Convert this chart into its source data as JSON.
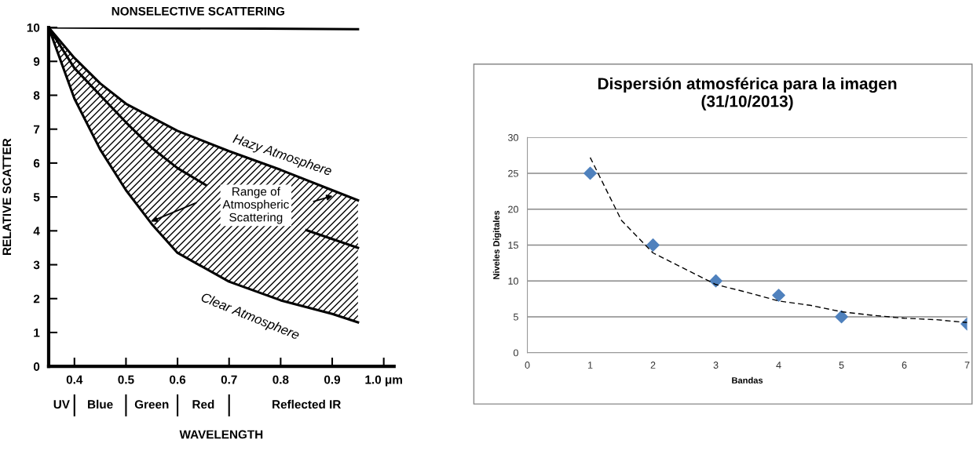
{
  "chart_data": [
    {
      "type": "line",
      "xlabel": "WAVELENGTH",
      "ylabel": "RELATIVE SCATTER",
      "xlim": [
        0.35,
        1.02
      ],
      "ylim": [
        0,
        10
      ],
      "xticks": [
        0.4,
        0.5,
        0.6,
        0.7,
        0.8,
        0.9,
        {
          "value": 1.0,
          "label": "1.0 μm"
        }
      ],
      "yticks": [
        0,
        1,
        2,
        3,
        4,
        5,
        6,
        7,
        8,
        9,
        10
      ],
      "series": [
        {
          "x": [
            0.35,
            0.95
          ],
          "values": [
            10,
            9.95
          ],
          "color": "#000000"
        },
        {
          "x": [
            0.35,
            0.4,
            0.45,
            0.5,
            0.6,
            0.7,
            0.8,
            0.9,
            0.95
          ],
          "values": [
            10,
            9.1,
            8.35,
            7.75,
            6.95,
            6.35,
            5.8,
            5.2,
            4.9
          ],
          "color": "#000000",
          "upper": [
            10,
            9.1,
            8.35,
            7.75,
            6.95,
            6.35,
            5.8,
            5.2,
            4.9
          ],
          "lower": [
            10,
            7.9,
            6.4,
            5.2,
            3.35,
            2.5,
            1.95,
            1.55,
            1.3
          ]
        },
        {
          "x": [
            0.35,
            0.4,
            0.45,
            0.5,
            0.55,
            0.6,
            0.655,
            0.7,
            0.8,
            0.85,
            0.95
          ],
          "values": [
            10,
            8.8,
            8.0,
            7.2,
            6.45,
            5.85,
            5.35,
            null,
            null,
            4.02,
            3.5
          ],
          "color": "#000000"
        },
        {
          "x": [
            0.35,
            0.4,
            0.45,
            0.5,
            0.55,
            0.6,
            0.7,
            0.8,
            0.9,
            0.95
          ],
          "values": [
            10,
            7.9,
            6.4,
            5.2,
            4.2,
            3.35,
            2.5,
            1.95,
            1.55,
            1.3
          ],
          "color": "#000000"
        }
      ],
      "annotations": [
        {
          "text": "NONSELECTIVE SCATTERING",
          "x": 0.64,
          "y": 10
        },
        {
          "text": "Hazy Atmosphere",
          "x": 0.82,
          "y": 5.7
        },
        "Range of\nAtmospheric\nScattering",
        {
          "text": "Clear Atmosphere",
          "x": 0.77,
          "y": 2.1
        },
        "UV",
        "Blue",
        "Green",
        "Red",
        "Reflected IR"
      ]
    },
    {
      "type": "scatter",
      "title": "Dispersión atmosférica para la imagen\n(31/10/2013)",
      "xlabel": "Bandas",
      "ylabel": "Niveles Digitales",
      "xlim": [
        0,
        7
      ],
      "ylim": [
        0,
        30
      ],
      "xticks": [
        0,
        1,
        2,
        3,
        4,
        5,
        6,
        7
      ],
      "yticks": [
        0,
        5,
        10,
        15,
        20,
        25,
        30
      ],
      "grid": "y",
      "series": [
        {
          "x": [
            1,
            2,
            3,
            4,
            5,
            7
          ],
          "values": [
            25,
            15,
            10,
            8,
            5,
            4
          ],
          "color": "#4f81bd",
          "marker": "diamond"
        },
        {
          "type": "line",
          "line_style": "dashed",
          "x": [
            1,
            1.5,
            2,
            2.5,
            3,
            3.5,
            4,
            4.5,
            5,
            5.5,
            6,
            6.5,
            7
          ],
          "values": [
            27.2,
            18.4,
            13.9,
            11.7,
            9.5,
            8.4,
            7.2,
            6.6,
            5.7,
            5.2,
            4.8,
            4.6,
            4.2
          ],
          "color": "#000000"
        }
      ]
    }
  ]
}
